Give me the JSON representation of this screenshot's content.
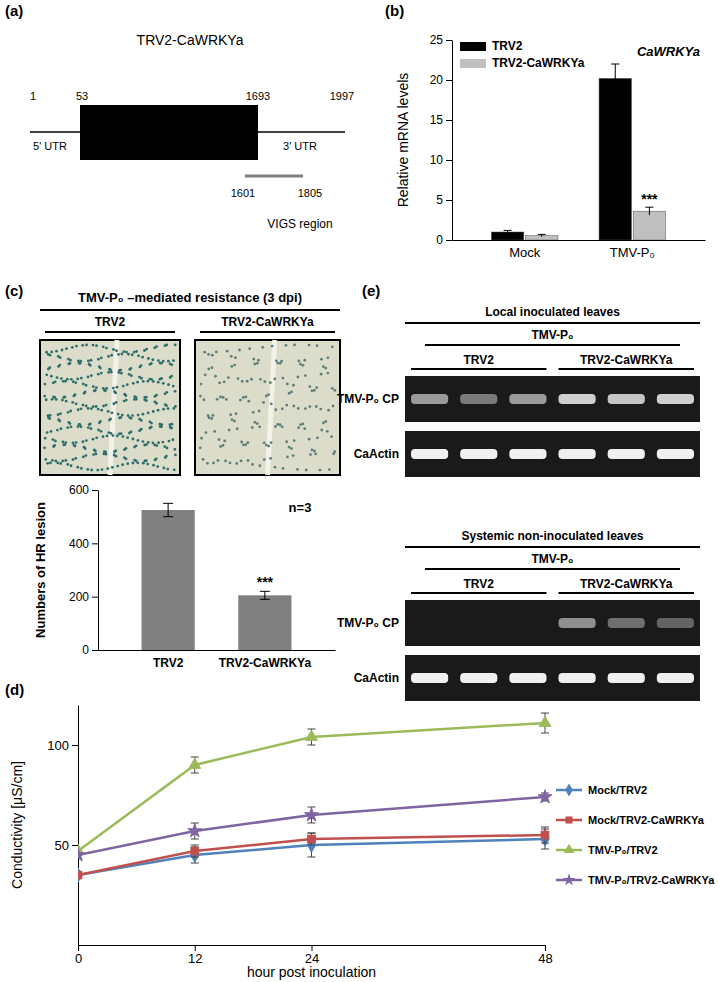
{
  "chart_data": [
    {
      "panel": "(b)",
      "type": "bar",
      "title": "CaWRKYa",
      "y_label": "Relative mRNA levels",
      "categories": [
        "Mock",
        "TMV-P₀"
      ],
      "series": [
        {
          "name": "TRV2",
          "color": "#000000",
          "values": [
            1.0,
            20.2
          ],
          "errors": [
            0.2,
            1.8
          ]
        },
        {
          "name": "TRV2-CaWRKYa",
          "color": "#c0c0c0",
          "values": [
            0.55,
            3.6
          ],
          "errors": [
            0.15,
            0.5
          ]
        }
      ],
      "ylim": [
        0,
        25
      ],
      "yticks": [
        0,
        5,
        10,
        15,
        20,
        25
      ],
      "legend": "upper left",
      "annotations": [
        "***"
      ]
    },
    {
      "panel": "(c)",
      "type": "bar",
      "y_label": "Numbers of HR lesion",
      "categories": [
        "TRV2",
        "TRV2-CaWRKYa"
      ],
      "values": [
        525,
        205
      ],
      "errors": [
        25,
        15
      ],
      "color": "#808080",
      "ylim": [
        0,
        600
      ],
      "yticks": [
        0,
        200,
        400,
        600
      ],
      "annotations": [
        "n=3",
        "***"
      ]
    },
    {
      "panel": "(d)",
      "type": "line",
      "x_label": "hour post inoculation",
      "y_label": "Conductivity [μS/cm]",
      "x": [
        0,
        12,
        24,
        48
      ],
      "xlim": [
        0,
        48
      ],
      "xticks": [
        0,
        12,
        24,
        48
      ],
      "ylim": [
        0,
        120
      ],
      "yticks": [
        50,
        100
      ],
      "legend": "right",
      "series": [
        {
          "name": "Mock/TRV2",
          "color": "#4f81bd",
          "marker": "diamond",
          "line_style": "solid",
          "values": [
            35,
            45,
            50,
            53
          ],
          "errors": [
            0,
            4,
            6,
            5
          ]
        },
        {
          "name": "Mock/TRV2-CaWRKYa",
          "color": "#c0504d",
          "marker": "square",
          "line_style": "solid",
          "values": [
            35,
            47,
            53,
            55
          ],
          "errors": [
            0,
            3,
            3,
            4
          ]
        },
        {
          "name": "TMV-P₀/TRV2",
          "color": "#9bbb59",
          "marker": "triangle",
          "line_style": "solid",
          "values": [
            47,
            90,
            104,
            111
          ],
          "errors": [
            0,
            4,
            4,
            5
          ]
        },
        {
          "name": "TMV-P₀/TRV2-CaWRKYa",
          "color": "#8064a2",
          "marker": "star",
          "line_style": "solid",
          "values": [
            45,
            57,
            65,
            74
          ],
          "errors": [
            0,
            4,
            4,
            2
          ]
        }
      ]
    }
  ],
  "diagram_a": {
    "panel": "(a)",
    "title": "TRV2-CaWRKYa",
    "positions": {
      "start": 1,
      "cds_start": 53,
      "cds_end": 1693,
      "end": 1997,
      "vigs_start": 1601,
      "vigs_end": 1805
    },
    "labels": {
      "utr5": "5' UTR",
      "utr3": "3' UTR",
      "vigs": "VIGS region"
    }
  },
  "images_c": {
    "title": "TMV-P₀ –mediated resistance (3 dpi)",
    "labels": [
      "TRV2",
      "TRV2-CaWRKYa"
    ]
  },
  "gel_e": {
    "panel": "(e)",
    "blocks": [
      {
        "title": "Local inoculated leaves",
        "treatment": "TMV-P₀",
        "groups": [
          "TRV2",
          "TRV2-CaWRKYa"
        ],
        "rows": [
          {
            "label": "TMV-P₀ CP",
            "intensity": [
              0.6,
              0.45,
              0.6,
              0.85,
              0.8,
              0.85
            ]
          },
          {
            "label": "CaActin",
            "intensity": [
              1,
              1,
              1,
              1,
              1,
              1
            ]
          }
        ]
      },
      {
        "title": "Systemic non-inoculated leaves",
        "treatment": "TMV-P₀",
        "groups": [
          "TRV2",
          "TRV2-CaWRKYa"
        ],
        "rows": [
          {
            "label": "TMV-P₀ CP",
            "intensity": [
              0,
              0,
              0,
              0.55,
              0.4,
              0.35
            ]
          },
          {
            "label": "CaActin",
            "intensity": [
              1,
              1,
              1,
              1,
              1,
              1
            ]
          }
        ]
      }
    ]
  }
}
